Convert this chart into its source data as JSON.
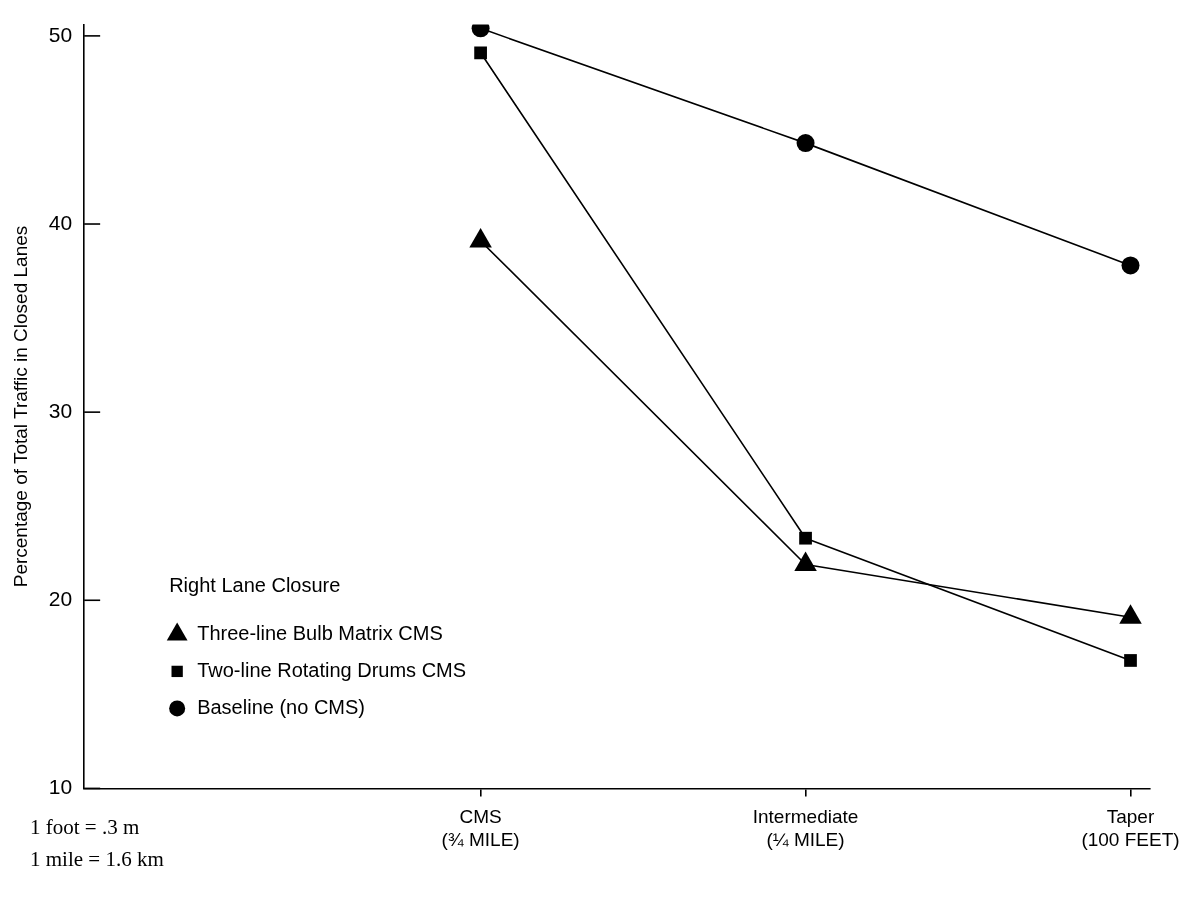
{
  "chart_data": {
    "type": "line",
    "ylabel": "Percentage of Total Traffic in Closed Lanes",
    "categories": [
      "CMS\n(¾ MILE)",
      "Intermediate\n(¼ MILE)",
      "Taper\n(100 FEET)"
    ],
    "ylim": [
      10,
      50.6
    ],
    "yticks": [
      10,
      20,
      30,
      40,
      50
    ],
    "legend": "bottom left",
    "legend_title": "Right Lane Closure",
    "line_style": "solid",
    "series": [
      {
        "name": "Three-line Bulb Matrix CMS",
        "color": "#000000",
        "marker": "triangle",
        "values": [
          39.1,
          21.9,
          19.1
        ]
      },
      {
        "name": "Two-line Rotating Drums CMS",
        "color": "#000000",
        "marker": "square",
        "values": [
          49.1,
          23.3,
          16.8
        ]
      },
      {
        "name": "Baseline (no CMS)",
        "color": "#000000",
        "marker": "circle",
        "values": [
          50.4,
          44.3,
          37.8
        ]
      }
    ],
    "annotations": [
      "1 foot = .3 m",
      "1 mile = 1.6 km"
    ],
    "grid": false
  }
}
